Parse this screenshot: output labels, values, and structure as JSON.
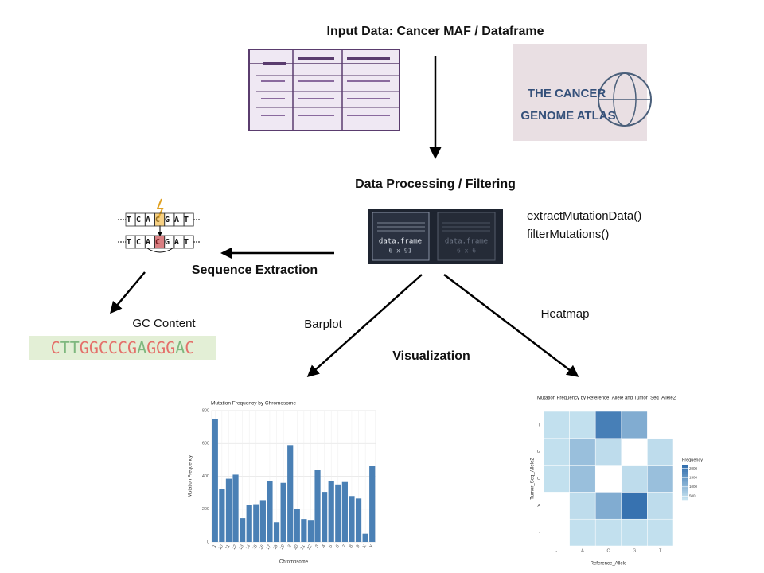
{
  "header": {
    "title": "Input Data: Cancer MAF / Dataframe"
  },
  "tcga_logo": {
    "lines": [
      "THE CANCER",
      "GENOME ATLAS"
    ]
  },
  "processing": {
    "title": "Data Processing / Filtering",
    "functions": [
      "extractMutationData()",
      "filterMutations()"
    ],
    "dataframes": [
      {
        "label": "data.frame",
        "dims": "6 x 91"
      },
      {
        "label": "data.frame",
        "dims": "6 x 6"
      }
    ]
  },
  "sequence_extraction": {
    "label": "Sequence Extraction",
    "top_sequence": "TCACGAT",
    "bottom_sequence": "TCACGAT"
  },
  "gc_content": {
    "label": "GC Content",
    "sequence": "CTTGGCCCGAGGGAC"
  },
  "edges": {
    "barplot": "Barplot",
    "heatmap": "Heatmap",
    "visualization": "Visualization"
  },
  "chart_data": [
    {
      "type": "bar",
      "title": "Mutation Frequency by Chromosome",
      "x_label": "Chromosome",
      "y_label": "Mutation Frequency",
      "categories": [
        "1",
        "10",
        "11",
        "12",
        "13",
        "14",
        "15",
        "16",
        "17",
        "18",
        "19",
        "2",
        "20",
        "21",
        "22",
        "3",
        "4",
        "5",
        "6",
        "7",
        "8",
        "9",
        "X",
        "Y"
      ],
      "values": [
        750,
        320,
        385,
        410,
        145,
        225,
        230,
        255,
        370,
        120,
        360,
        590,
        200,
        140,
        130,
        440,
        305,
        370,
        350,
        365,
        280,
        265,
        50,
        465
      ],
      "color": "#4a80b5",
      "ylim": [
        0,
        800
      ],
      "yticks": [
        0,
        200,
        400,
        600,
        800
      ],
      "grid": true
    },
    {
      "type": "heatmap",
      "title": "Mutation Frequency by Reference_Allele and Tumor_Seq_Allele2",
      "x_label": "Reference_Allele",
      "y_label": "Tumor_Seq_Allele2",
      "x_categories": [
        "-",
        "A",
        "C",
        "G",
        "T"
      ],
      "y_categories": [
        "-",
        "A",
        "C",
        "G",
        "T"
      ],
      "values": [
        [
          null,
          400,
          400,
          400,
          400
        ],
        [
          null,
          450,
          1200,
          2100,
          450
        ],
        [
          400,
          900,
          null,
          450,
          900
        ],
        [
          400,
          900,
          450,
          null,
          450
        ],
        [
          400,
          400,
          1900,
          1200,
          null
        ]
      ],
      "legend_title": "Frequency",
      "clim": [
        300,
        2200
      ],
      "colorbar_ticks": [
        500,
        1000,
        1500,
        2000
      ],
      "colors": [
        "#cae6f2",
        "#2f6cac"
      ]
    }
  ]
}
